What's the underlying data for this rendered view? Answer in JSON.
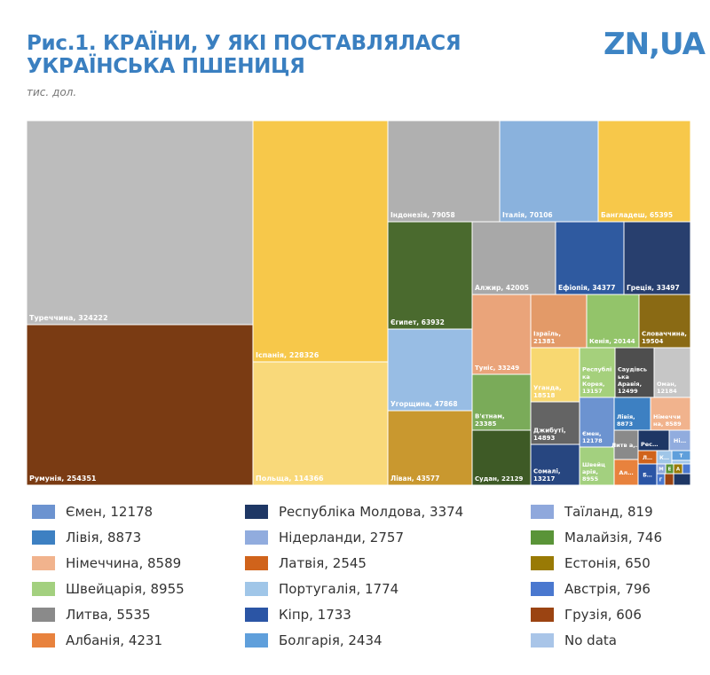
{
  "header": {
    "title": "Рис.1. КРАЇНИ, У ЯКІ ПОСТАВЛЯЛАСЯ УКРАЇНСЬКА ПШЕНИЦЯ",
    "unit": "тис. дол.",
    "logo": "ZN,UA"
  },
  "colors": {
    "accent": "#3a7fc0"
  },
  "chart_data": {
    "type": "treemap",
    "title": "Рис.1. КРАЇНИ, У ЯКІ ПОСТАВЛЯЛАСЯ УКРАЇНСЬКА ПШЕНИЦЯ",
    "unit": "тис. дол.",
    "items": [
      {
        "name": "Туреччина",
        "value": 324222,
        "label": "Туреччина, 324222",
        "color": "#bcbcbc"
      },
      {
        "name": "Румунія",
        "value": 254351,
        "label": "Румунія, 254351",
        "color": "#7a3b13"
      },
      {
        "name": "Іспанія",
        "value": 228326,
        "label": "Іспанія, 228326",
        "color": "#f7c84a"
      },
      {
        "name": "Польща",
        "value": 114366,
        "label": "Польща, 114366",
        "color": "#f9d97a"
      },
      {
        "name": "Індонезія",
        "value": 79058,
        "label": "Індонезія, 79058",
        "color": "#b0b0b0"
      },
      {
        "name": "Італія",
        "value": 70106,
        "label": "Італія, 70106",
        "color": "#8ab2dd"
      },
      {
        "name": "Бангладеш",
        "value": 65395,
        "label": "Бангладеш, 65395",
        "color": "#f7c84a"
      },
      {
        "name": "Єгипет",
        "value": 63932,
        "label": "Єгипет, 63932",
        "color": "#4a6a2e"
      },
      {
        "name": "Алжир",
        "value": 42005,
        "label": "Алжир, 42005",
        "color": "#a8a8a8"
      },
      {
        "name": "Ефіопія",
        "value": 34377,
        "label": "Ефіопія, 34377",
        "color": "#2f5aa0"
      },
      {
        "name": "Греція",
        "value": 33497,
        "label": "Греція, 33497",
        "color": "#283f6e"
      },
      {
        "name": "Угорщина",
        "value": 47868,
        "label": "Угорщина, 47868",
        "color": "#98bde4"
      },
      {
        "name": "Ліван",
        "value": 43577,
        "label": "Ліван, 43577",
        "color": "#c9982f"
      },
      {
        "name": "Туніс",
        "value": 33249,
        "label": "Туніс, 33249",
        "color": "#eaa47a"
      },
      {
        "name": "В'єтнам",
        "value": 23385,
        "label": "В'єтнам, 23385",
        "color": "#7aab59"
      },
      {
        "name": "Судан",
        "value": 22129,
        "label": "Судан, 22129",
        "color": "#3e5a26"
      },
      {
        "name": "Ізраїль",
        "value": 21381,
        "label": "Ізраїль, 21381",
        "color": "#e39a68"
      },
      {
        "name": "Кенія",
        "value": 20144,
        "label": "Кенія, 20144",
        "color": "#93c46a"
      },
      {
        "name": "Словаччина",
        "value": 19504,
        "label": "Словаччина, 19504",
        "color": "#8a6a14"
      },
      {
        "name": "Уганда",
        "value": 18518,
        "label": "Уганда, 18518",
        "color": "#f8d871"
      },
      {
        "name": "Джибуті",
        "value": 14893,
        "label": "Джибуті, 14893",
        "color": "#646464"
      },
      {
        "name": "Сомалі",
        "value": 13217,
        "label": "Сомалі, 13217",
        "color": "#274680"
      },
      {
        "name": "Республіка Корея",
        "value": 13157,
        "label": "Республі ка Корея, 13157",
        "color": "#a5d07c"
      },
      {
        "name": "Саудівська Аравія",
        "value": 12499,
        "label": "Саудівсь ька Аравія, 12499",
        "color": "#4e4e4e"
      },
      {
        "name": "Оман",
        "value": 12184,
        "label": "Оман, 12184",
        "color": "#c6c6c6"
      },
      {
        "name": "Ємен",
        "value": 12178,
        "label": "Ємен, 12178",
        "color": "#6c93d0"
      },
      {
        "name": "Швейцарія",
        "value": 8955,
        "label": "Швейц арія, 8955",
        "color": "#a3d07f"
      },
      {
        "name": "Лівія",
        "value": 8873,
        "label": "Лівія, 8873",
        "color": "#3d80c2"
      },
      {
        "name": "Німеччина",
        "value": 8589,
        "label": "Німеччи на, 8589",
        "color": "#f1b38d"
      },
      {
        "name": "Литва",
        "value": 5535,
        "label": "Литв а,…",
        "color": "#8a8a8a"
      },
      {
        "name": "Албанія",
        "value": 4231,
        "label": "Ал…",
        "color": "#e8823d"
      },
      {
        "name": "Республіка Молдова",
        "value": 3374,
        "label": "Рес…",
        "color": "#1e3765"
      },
      {
        "name": "Нідерланди",
        "value": 2757,
        "label": "Ні…",
        "color": "#91acde"
      },
      {
        "name": "Латвія",
        "value": 2545,
        "label": "Л…",
        "color": "#d0631b"
      },
      {
        "name": "Португалія",
        "value": 1774,
        "label": "К…",
        "color": "#a0c6e8"
      },
      {
        "name": "Кіпр",
        "value": 1733,
        "label": "Б…",
        "color": "#2b55a5"
      },
      {
        "name": "Болгарія",
        "value": 2434,
        "label": "Т",
        "color": "#5f9fdb"
      },
      {
        "name": "Таїланд",
        "value": 819,
        "label": "М",
        "color": "#8fa8dc"
      },
      {
        "name": "Малайзія",
        "value": 746,
        "label": "Е",
        "color": "#5a9438"
      },
      {
        "name": "Естонія",
        "value": 650,
        "label": "А",
        "color": "#997a05"
      },
      {
        "name": "Австрія",
        "value": 796,
        "label": "Г",
        "color": "#4a78cf"
      },
      {
        "name": "Грузія",
        "value": 606,
        "label": "",
        "color": "#9b4412"
      }
    ],
    "legend": [
      {
        "label": "Ємен, 12178",
        "color": "#6c93d0"
      },
      {
        "label": "Лівія, 8873",
        "color": "#3d80c2"
      },
      {
        "label": "Німеччина, 8589",
        "color": "#f1b38d"
      },
      {
        "label": "Швейцарія, 8955",
        "color": "#a3d07f"
      },
      {
        "label": "Литва, 5535",
        "color": "#8a8a8a"
      },
      {
        "label": "Албанія, 4231",
        "color": "#e8823d"
      },
      {
        "label": "Республіка Молдова, 3374",
        "color": "#1e3765"
      },
      {
        "label": "Нідерланди, 2757",
        "color": "#91acde"
      },
      {
        "label": "Латвія, 2545",
        "color": "#d0631b"
      },
      {
        "label": "Португалія, 1774",
        "color": "#a0c6e8"
      },
      {
        "label": "Кіпр, 1733",
        "color": "#2b55a5"
      },
      {
        "label": "Болгарія, 2434",
        "color": "#5f9fdb"
      },
      {
        "label": "Таїланд, 819",
        "color": "#8fa8dc"
      },
      {
        "label": "Малайзія, 746",
        "color": "#5a9438"
      },
      {
        "label": "Естонія, 650",
        "color": "#997a05"
      },
      {
        "label": "Австрія, 796",
        "color": "#4a78cf"
      },
      {
        "label": "Грузія, 606",
        "color": "#9b4412"
      },
      {
        "label": "No data",
        "color": "#a9c5e8"
      }
    ]
  }
}
